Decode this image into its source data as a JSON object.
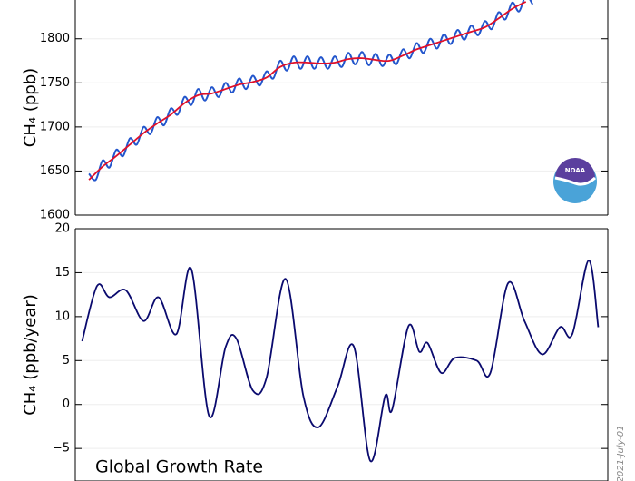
{
  "chart_data": [
    {
      "type": "line",
      "ylabel": "CH₄ (ppb)",
      "xlim": [
        1983,
        2022
      ],
      "ylim": [
        1600,
        1844
      ],
      "yticks": [
        1600,
        1650,
        1700,
        1750,
        1800
      ],
      "grid": true,
      "logo_text": "NOAA",
      "series": [
        {
          "color": "#2255cc",
          "x": [
            1984.0,
            1984.5,
            1985.0,
            1985.5,
            1986.0,
            1986.5,
            1987.0,
            1987.5,
            1988.0,
            1988.5,
            1989.0,
            1989.5,
            1990.0,
            1990.5,
            1991.0,
            1991.5,
            1992.0,
            1992.5,
            1993.0,
            1993.5,
            1994.0,
            1994.5,
            1995.0,
            1995.5,
            1996.0,
            1996.5,
            1997.0,
            1997.5,
            1998.0,
            1998.5,
            1999.0,
            1999.5,
            2000.0,
            2000.5,
            2001.0,
            2001.5,
            2002.0,
            2002.5,
            2003.0,
            2003.5,
            2004.0,
            2004.5,
            2005.0,
            2005.5,
            2006.0,
            2006.5,
            2007.0,
            2007.5,
            2008.0,
            2008.5,
            2009.0,
            2009.5,
            2010.0,
            2010.5,
            2011.0,
            2011.5,
            2012.0,
            2012.5,
            2013.0,
            2013.5,
            2014.0,
            2014.5,
            2015.0,
            2015.5,
            2016.0,
            2016.5
          ],
          "values": [
            1647,
            1640,
            1662,
            1654,
            1674,
            1667,
            1687,
            1680,
            1700,
            1692,
            1711,
            1702,
            1721,
            1714,
            1734,
            1725,
            1743,
            1730,
            1745,
            1734,
            1750,
            1739,
            1755,
            1743,
            1758,
            1747,
            1763,
            1755,
            1775,
            1764,
            1780,
            1766,
            1780,
            1766,
            1779,
            1766,
            1780,
            1768,
            1784,
            1771,
            1785,
            1770,
            1783,
            1769,
            1782,
            1771,
            1788,
            1778,
            1795,
            1784,
            1800,
            1789,
            1805,
            1794,
            1810,
            1799,
            1815,
            1804,
            1820,
            1811,
            1830,
            1822,
            1841,
            1831,
            1849,
            1839
          ]
        },
        {
          "color": "#e0102a",
          "x": [
            1984,
            1985,
            1986,
            1987,
            1988,
            1989,
            1990,
            1991,
            1992,
            1993,
            1994,
            1995,
            1996,
            1997,
            1998,
            1999,
            2000,
            2001,
            2002,
            2003,
            2004,
            2005,
            2006,
            2007,
            2008,
            2009,
            2010,
            2011,
            2012,
            2013,
            2014,
            2015,
            2016
          ],
          "values": [
            1640,
            1655,
            1667,
            1680,
            1693,
            1704,
            1714,
            1727,
            1736,
            1738,
            1743,
            1748,
            1751,
            1756,
            1768,
            1773,
            1773,
            1772,
            1773,
            1777,
            1778,
            1776,
            1775,
            1781,
            1788,
            1793,
            1798,
            1803,
            1808,
            1813,
            1823,
            1834,
            1842
          ]
        }
      ]
    },
    {
      "type": "line",
      "ylabel": "CH₄ (ppb/year)",
      "annotation": "Global Growth Rate",
      "date_note": "2021-July-01",
      "xlim": [
        1983,
        2022
      ],
      "ylim": [
        -8.7,
        20
      ],
      "yticks": [
        {
          "value": -5,
          "label": "−5"
        },
        0,
        5,
        10,
        15,
        20
      ],
      "grid": true,
      "series": [
        {
          "color": "#0a0a6e",
          "x": [
            1983.5,
            1984.6,
            1985.5,
            1986.7,
            1988.0,
            1989.1,
            1990.4,
            1991.5,
            1992.8,
            1994.0,
            1994.8,
            1996.0,
            1997.0,
            1998.4,
            1999.7,
            2000.8,
            2002.2,
            2003.4,
            2004.6,
            2005.7,
            2006.2,
            2007.4,
            2008.2,
            2008.8,
            2009.8,
            2010.8,
            2012.4,
            2013.4,
            2014.7,
            2015.9,
            2017.2,
            2018.5,
            2019.4,
            2020.6,
            2021.3
          ],
          "values": [
            7.2,
            13.5,
            12.2,
            13,
            9.5,
            12.2,
            8,
            15.4,
            -1.3,
            6.5,
            7.5,
            1.6,
            3,
            14.3,
            1,
            -2.6,
            2,
            6.6,
            -6.4,
            1,
            -0.6,
            8.9,
            6,
            7,
            3.6,
            5.3,
            5,
            3.6,
            13.8,
            9.5,
            5.7,
            8.8,
            8,
            16.4,
            8.8
          ]
        }
      ]
    }
  ]
}
